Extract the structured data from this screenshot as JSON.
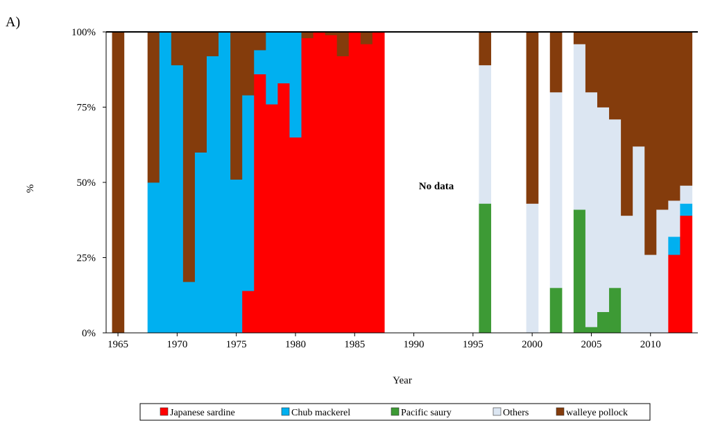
{
  "chart_data": {
    "type": "bar",
    "stacked": true,
    "panel_label": "A)",
    "xlabel": "Year",
    "ylabel": "%",
    "xlim": [
      1964,
      2014
    ],
    "ylim": [
      0,
      100
    ],
    "x_ticks": [
      "1965",
      "1970",
      "1975",
      "1980",
      "1985",
      "1990",
      "1995",
      "2000",
      "2005",
      "2010"
    ],
    "y_ticks": [
      "0%",
      "25%",
      "50%",
      "75%",
      "100%"
    ],
    "annotation": "No data",
    "legend_position": "bottom",
    "years": [
      1965,
      1968,
      1969,
      1970,
      1971,
      1972,
      1973,
      1974,
      1975,
      1976,
      1977,
      1978,
      1979,
      1980,
      1981,
      1982,
      1983,
      1984,
      1985,
      1986,
      1987,
      1996,
      2000,
      2002,
      2004,
      2005,
      2006,
      2007,
      2008,
      2009,
      2010,
      2011,
      2012,
      2013
    ],
    "series": [
      {
        "name": "Japanese sardine",
        "color": "#ff0000",
        "values": [
          0,
          0,
          0,
          0,
          0,
          0,
          0,
          0,
          0,
          14,
          86,
          76,
          83,
          65,
          98,
          100,
          99,
          92,
          100,
          96,
          100,
          0,
          0,
          0,
          0,
          0,
          0,
          0,
          0,
          0,
          0,
          0,
          26,
          39
        ]
      },
      {
        "name": "Chub mackerel",
        "color": "#00b0f0",
        "values": [
          0,
          50,
          100,
          89,
          17,
          60,
          92,
          100,
          51,
          65,
          8,
          24,
          17,
          35,
          0,
          0,
          0,
          0,
          0,
          0,
          0,
          0,
          0,
          0,
          0,
          0,
          0,
          0,
          0,
          0,
          0,
          0,
          6,
          4
        ]
      },
      {
        "name": "Pacific saury",
        "color": "#3d9a35",
        "values": [
          0,
          0,
          0,
          0,
          0,
          0,
          0,
          0,
          0,
          0,
          0,
          0,
          0,
          0,
          0,
          0,
          0,
          0,
          0,
          0,
          0,
          43,
          0,
          15,
          41,
          2,
          7,
          15,
          0,
          0,
          0,
          0,
          0,
          0
        ]
      },
      {
        "name": "Others",
        "color": "#dce6f2",
        "values": [
          0,
          0,
          0,
          0,
          0,
          0,
          0,
          0,
          0,
          0,
          0,
          0,
          0,
          0,
          0,
          0,
          0,
          0,
          0,
          0,
          0,
          46,
          43,
          65,
          55,
          78,
          68,
          56,
          39,
          62,
          26,
          41,
          12,
          6
        ]
      },
      {
        "name": "walleye pollock",
        "color": "#843c0c",
        "values": [
          100,
          50,
          0,
          11,
          83,
          40,
          8,
          0,
          49,
          21,
          6,
          0,
          0,
          0,
          2,
          0,
          1,
          8,
          0,
          4,
          0,
          11,
          57,
          20,
          4,
          20,
          25,
          29,
          61,
          38,
          74,
          59,
          56,
          51
        ]
      }
    ]
  }
}
